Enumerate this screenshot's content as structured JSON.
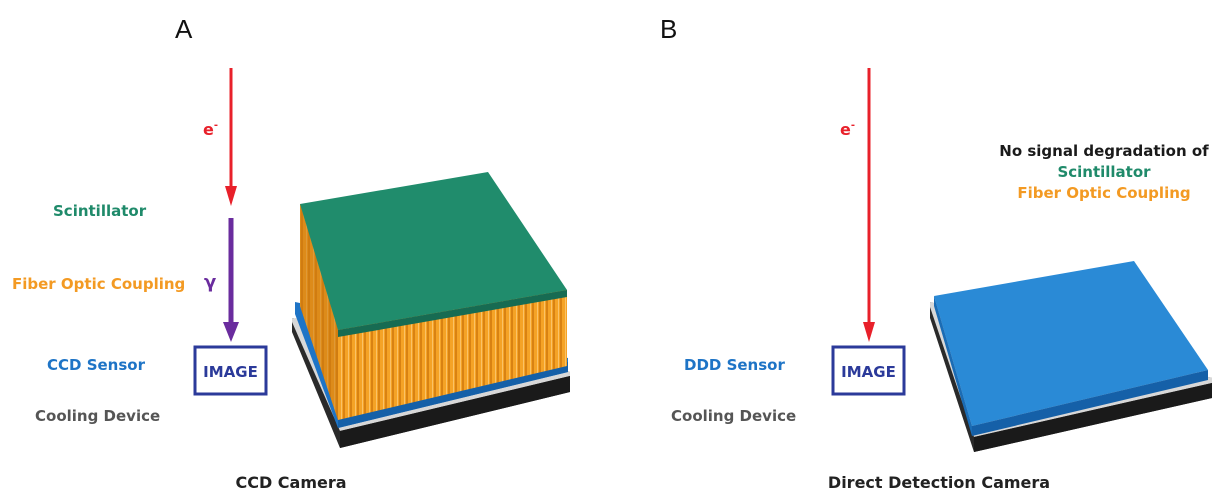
{
  "colors": {
    "electron": "#e8202a",
    "photon": "#6a2c9e",
    "scintillator": "#1f8a6a",
    "fiber": "#f39a23",
    "sensor": "#1e74c6",
    "cooling": "#555555",
    "image_box": "#2b3a9a",
    "note_title": "#1a1a1a"
  },
  "panel_a": {
    "letter": "A",
    "electron_label": "e",
    "electron_superscript": "-",
    "photon_label": "γ",
    "image_label": "IMAGE",
    "layers": {
      "scintillator": "Scintillator",
      "fiber": "Fiber Optic Coupling",
      "sensor": "CCD Sensor",
      "cooling": "Cooling Device"
    },
    "caption": "CCD Camera"
  },
  "panel_b": {
    "letter": "B",
    "electron_label": "e",
    "electron_superscript": "-",
    "image_label": "IMAGE",
    "layers": {
      "sensor": "DDD Sensor",
      "cooling": "Cooling Device"
    },
    "note": {
      "title": "No signal degradation of",
      "line1": "Scintillator",
      "line2": "Fiber Optic Coupling"
    },
    "caption": "Direct Detection Camera"
  }
}
